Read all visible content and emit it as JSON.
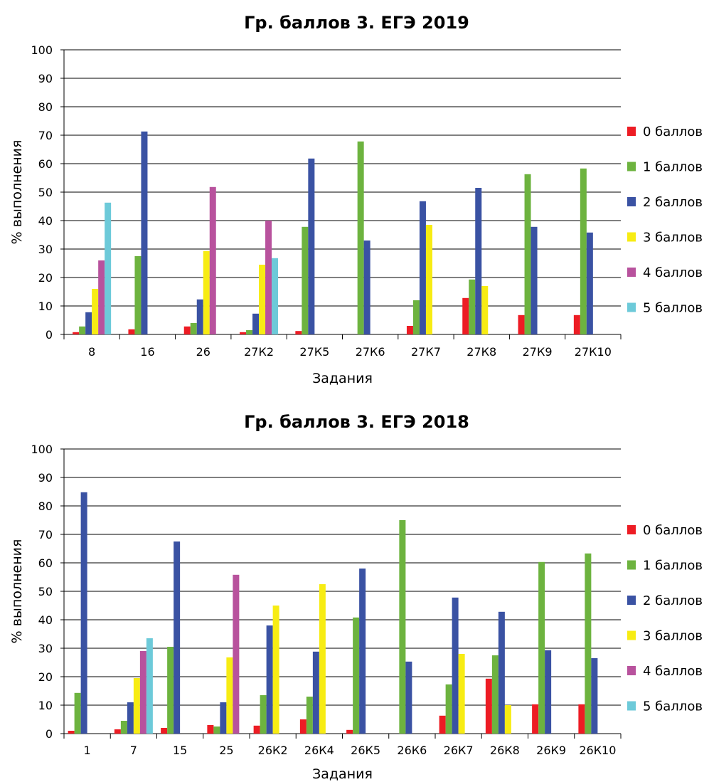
{
  "chart_data": [
    {
      "type": "bar",
      "title": "Гр. баллов 3. ЕГЭ 2019",
      "xlabel": "Задания",
      "ylabel": "% выполнения",
      "ylim": [
        0,
        100
      ],
      "yticks": [
        0,
        10,
        20,
        30,
        40,
        50,
        60,
        70,
        80,
        90,
        100
      ],
      "grid": true,
      "legend_position": "right",
      "categories": [
        "8",
        "16",
        "26",
        "27К2",
        "27К5",
        "27К6",
        "27К7",
        "27К8",
        "27К9",
        "27К10"
      ],
      "series": [
        {
          "name": "0 баллов",
          "color": "#ed1c24",
          "values": [
            0.8,
            1.8,
            2.8,
            0.8,
            1.2,
            null,
            3.0,
            12.8,
            6.8,
            6.8
          ]
        },
        {
          "name": "1 баллов",
          "color": "#6db33f",
          "values": [
            2.8,
            27.5,
            4.0,
            1.5,
            37.8,
            67.8,
            12.0,
            19.3,
            56.3,
            58.3
          ]
        },
        {
          "name": "2 баллов",
          "color": "#3a52a3",
          "values": [
            7.8,
            71.3,
            12.3,
            7.3,
            61.8,
            33.0,
            46.8,
            51.5,
            37.8,
            35.8
          ]
        },
        {
          "name": "3 баллов",
          "color": "#f7ec13",
          "values": [
            16.0,
            null,
            29.3,
            24.5,
            null,
            null,
            38.5,
            17.0,
            null,
            null
          ]
        },
        {
          "name": "4 баллов",
          "color": "#b8529d",
          "values": [
            26.0,
            null,
            51.8,
            40.0,
            null,
            null,
            null,
            null,
            null,
            null
          ]
        },
        {
          "name": "5 баллов",
          "color": "#6dcad9",
          "values": [
            46.3,
            null,
            null,
            26.8,
            null,
            null,
            null,
            null,
            null,
            null
          ]
        }
      ]
    },
    {
      "type": "bar",
      "title": "Гр. баллов 3. ЕГЭ 2018",
      "xlabel": "Задания",
      "ylabel": "% выполнения",
      "ylim": [
        0,
        100
      ],
      "yticks": [
        0,
        10,
        20,
        30,
        40,
        50,
        60,
        70,
        80,
        90,
        100
      ],
      "grid": true,
      "legend_position": "right",
      "categories": [
        "1",
        "7",
        "15",
        "25",
        "26К2",
        "26К4",
        "26К5",
        "26К6",
        "26К7",
        "26К8",
        "26К9",
        "26К10"
      ],
      "series": [
        {
          "name": "0 баллов",
          "color": "#ed1c24",
          "values": [
            1.0,
            1.5,
            2.0,
            3.0,
            2.8,
            5.0,
            1.3,
            null,
            6.3,
            19.3,
            10.3,
            10.3
          ]
        },
        {
          "name": "1 баллов",
          "color": "#6db33f",
          "values": [
            14.3,
            4.5,
            30.5,
            2.5,
            13.5,
            13.0,
            40.8,
            75.0,
            17.3,
            27.5,
            60.3,
            63.3
          ]
        },
        {
          "name": "2 баллов",
          "color": "#3a52a3",
          "values": [
            84.8,
            11.0,
            67.5,
            11.0,
            38.0,
            28.8,
            58.0,
            25.3,
            47.8,
            42.8,
            29.3,
            26.5
          ]
        },
        {
          "name": "3 баллов",
          "color": "#f7ec13",
          "values": [
            null,
            19.5,
            null,
            26.8,
            45.0,
            52.5,
            null,
            null,
            28.0,
            10.0,
            null,
            null
          ]
        },
        {
          "name": "4 баллов",
          "color": "#b8529d",
          "values": [
            null,
            29.0,
            null,
            55.8,
            null,
            null,
            null,
            null,
            null,
            null,
            null,
            null
          ]
        },
        {
          "name": "5 баллов",
          "color": "#6dcad9",
          "values": [
            null,
            33.5,
            null,
            null,
            null,
            null,
            null,
            null,
            null,
            null,
            null,
            null
          ]
        }
      ]
    }
  ]
}
